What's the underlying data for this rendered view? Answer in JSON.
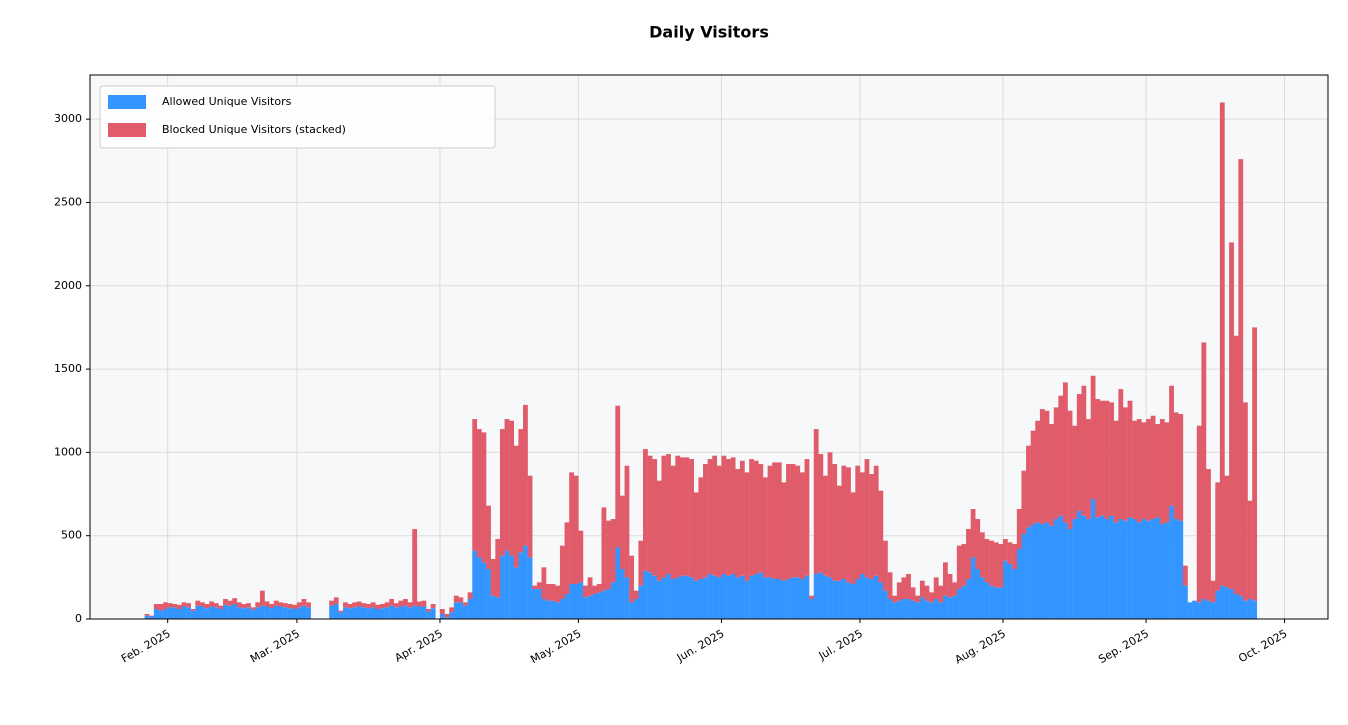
{
  "chart_data": {
    "type": "bar",
    "stacked": true,
    "title": "Daily Visitors",
    "categories": [
      null,
      null,
      null,
      null,
      null,
      "Feb. 2025",
      null,
      null,
      null,
      null,
      null,
      null,
      null,
      null,
      null,
      null,
      null,
      null,
      null,
      null,
      null,
      null,
      null,
      null,
      null,
      null,
      null,
      null,
      null,
      null,
      null,
      null,
      null,
      "Mar. 2025",
      null,
      null,
      null,
      null,
      null,
      null,
      null,
      null,
      null,
      null,
      null,
      null,
      null,
      null,
      null,
      null,
      null,
      null,
      null,
      null,
      null,
      null,
      null,
      null,
      null,
      null,
      null,
      null,
      null,
      null,
      "Apr. 2025",
      null,
      null,
      null,
      null,
      null,
      null,
      null,
      null,
      null,
      null,
      null,
      null,
      null,
      null,
      null,
      null,
      null,
      null,
      null,
      null,
      null,
      null,
      null,
      null,
      null,
      null,
      null,
      null,
      null,
      "May. 2025",
      null,
      null,
      null,
      null,
      null,
      null,
      null,
      null,
      null,
      null,
      null,
      null,
      null,
      null,
      null,
      null,
      null,
      null,
      null,
      null,
      null,
      null,
      null,
      null,
      null,
      null,
      null,
      null,
      null,
      null,
      "Jun. 2025",
      null,
      null,
      null,
      null,
      null,
      null,
      null,
      null,
      null,
      null,
      null,
      null,
      null,
      null,
      null,
      null,
      null,
      null,
      null,
      null,
      null,
      null,
      null,
      null,
      null,
      null,
      null,
      null,
      null,
      "Jul. 2025",
      null,
      null,
      null,
      null,
      null,
      null,
      null,
      null,
      null,
      null,
      null,
      null,
      null,
      null,
      null,
      null,
      null,
      null,
      null,
      null,
      null,
      null,
      null,
      null,
      null,
      null,
      null,
      null,
      null,
      null,
      "Aug. 2025",
      null,
      null,
      null,
      null,
      null,
      null,
      null,
      null,
      null,
      null,
      null,
      null,
      null,
      null,
      null,
      null,
      null,
      null,
      null,
      null,
      null,
      null,
      null,
      null,
      null,
      null,
      null,
      null,
      null,
      null,
      "Sep. 2025",
      null,
      null,
      null,
      null,
      null,
      null,
      null,
      null,
      null,
      null,
      null,
      null,
      null,
      null,
      null,
      null,
      null,
      null,
      null,
      null,
      null,
      null,
      null,
      null,
      null,
      null,
      null,
      null,
      null,
      "Oct. 2025"
    ],
    "series": [
      {
        "name": "Allowed Unique Visitors",
        "color": "#3395ff",
        "values": [
          20,
          15,
          60,
          50,
          60,
          70,
          70,
          60,
          75,
          70,
          50,
          80,
          75,
          65,
          75,
          70,
          60,
          85,
          80,
          90,
          70,
          65,
          70,
          55,
          70,
          80,
          75,
          65,
          80,
          75,
          70,
          65,
          60,
          70,
          80,
          70,
          null,
          null,
          null,
          null,
          80,
          90,
          40,
          70,
          65,
          70,
          75,
          70,
          65,
          70,
          60,
          65,
          70,
          80,
          70,
          75,
          80,
          70,
          80,
          75,
          75,
          45,
          65,
          null,
          30,
          10,
          40,
          100,
          100,
          80,
          120,
          410,
          370,
          340,
          300,
          140,
          130,
          380,
          410,
          380,
          310,
          400,
          440,
          370,
          180,
          180,
          120,
          110,
          110,
          100,
          120,
          150,
          210,
          210,
          220,
          130,
          140,
          150,
          160,
          170,
          180,
          220,
          430,
          300,
          250,
          100,
          120,
          200,
          290,
          280,
          260,
          230,
          250,
          270,
          240,
          250,
          260,
          260,
          250,
          230,
          240,
          250,
          270,
          260,
          250,
          270,
          260,
          270,
          250,
          260,
          230,
          260,
          270,
          280,
          250,
          250,
          240,
          240,
          230,
          240,
          250,
          250,
          240,
          260,
          120,
          270,
          280,
          260,
          250,
          230,
          230,
          240,
          220,
          210,
          240,
          270,
          250,
          240,
          260,
          220,
          170,
          120,
          100,
          110,
          120,
          120,
          110,
          100,
          130,
          110,
          100,
          120,
          100,
          140,
          130,
          140,
          180,
          200,
          240,
          370,
          300,
          250,
          220,
          200,
          190,
          190,
          350,
          330,
          300,
          420,
          510,
          550,
          570,
          580,
          570,
          580,
          560,
          600,
          620,
          580,
          540,
          600,
          650,
          620,
          600,
          720,
          610,
          620,
          600,
          620,
          580,
          600,
          590,
          610,
          600,
          580,
          600,
          590,
          600,
          610,
          570,
          580,
          680,
          600,
          590,
          200,
          100,
          110,
          100,
          120,
          110,
          100,
          170,
          200,
          190,
          180,
          150,
          140,
          110,
          120,
          110,
          null,
          null,
          null,
          null,
          null,
          null,
          null
        ]
      },
      {
        "name": "Blocked Unique Visitors (stacked)",
        "color": "#e05c6a",
        "values": [
          10,
          5,
          30,
          40,
          40,
          25,
          20,
          25,
          25,
          25,
          10,
          30,
          25,
          25,
          30,
          25,
          20,
          35,
          30,
          35,
          30,
          25,
          25,
          15,
          30,
          90,
          30,
          25,
          30,
          25,
          25,
          25,
          25,
          30,
          40,
          30,
          null,
          null,
          null,
          null,
          30,
          40,
          10,
          30,
          25,
          30,
          30,
          25,
          25,
          30,
          25,
          25,
          30,
          40,
          25,
          35,
          40,
          30,
          460,
          30,
          35,
          15,
          25,
          null,
          30,
          20,
          30,
          40,
          30,
          20,
          40,
          790,
          770,
          780,
          380,
          220,
          350,
          760,
          790,
          810,
          730,
          740,
          845,
          490,
          20,
          40,
          190,
          100,
          100,
          100,
          320,
          430,
          670,
          650,
          310,
          70,
          110,
          50,
          50,
          500,
          410,
          380,
          850,
          440,
          670,
          280,
          50,
          270,
          730,
          700,
          700,
          600,
          730,
          720,
          680,
          730,
          710,
          710,
          710,
          530,
          610,
          680,
          690,
          720,
          670,
          710,
          700,
          700,
          650,
          690,
          650,
          700,
          680,
          650,
          600,
          670,
          700,
          700,
          590,
          690,
          680,
          670,
          640,
          700,
          20,
          870,
          710,
          600,
          750,
          700,
          570,
          680,
          690,
          550,
          680,
          610,
          710,
          630,
          660,
          550,
          300,
          160,
          40,
          110,
          130,
          150,
          80,
          40,
          100,
          90,
          60,
          130,
          100,
          200,
          140,
          80,
          260,
          250,
          300,
          290,
          300,
          270,
          260,
          270,
          270,
          260,
          130,
          130,
          150,
          240,
          380,
          490,
          560,
          610,
          690,
          670,
          610,
          670,
          720,
          840,
          710,
          560,
          700,
          780,
          600,
          740,
          710,
          690,
          710,
          680,
          610,
          780,
          680,
          700,
          590,
          620,
          580,
          610,
          620,
          560,
          630,
          600,
          720,
          640,
          640,
          120,
          0,
          0,
          1060,
          1540,
          790,
          130,
          650,
          2900,
          670,
          2080,
          1550,
          2620,
          1190,
          590,
          1640,
          null,
          null,
          null,
          null,
          null,
          null,
          null
        ]
      }
    ],
    "ylim": [
      0,
      3265
    ],
    "yticks": [
      0,
      500,
      1000,
      1500,
      2000,
      2500,
      3000
    ],
    "grid": true,
    "legend": "upper left"
  }
}
